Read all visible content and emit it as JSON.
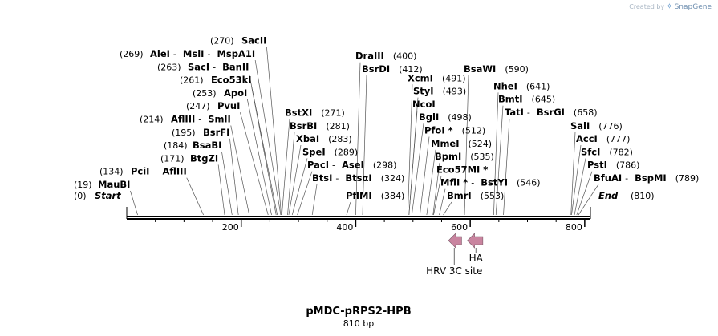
{
  "brand": {
    "created_by": "Created by",
    "app_name": "SnapGene",
    "logo_icon": "snapgene-logo-icon"
  },
  "map": {
    "title": "pMDC-pRPS2-HPB",
    "length_label": "810 bp",
    "length_bp": 810,
    "start_label": "Start",
    "start_position": "(0)",
    "end_label": "End",
    "end_position": "(810)",
    "ticks": [
      200,
      400,
      600,
      800
    ],
    "colors": {
      "backbone": "#000000",
      "feature": "#c9849f",
      "label_line": "#555555"
    },
    "features": [
      {
        "name": "HRV 3C site",
        "start": 562,
        "end": 585,
        "direction": "reverse"
      },
      {
        "name": "HA",
        "start": 595,
        "end": 622,
        "direction": "reverse"
      }
    ],
    "sites": [
      {
        "group": "left",
        "row": 0,
        "enzymes": [
          "MauBI"
        ],
        "position": "(19)",
        "cut": 19
      },
      {
        "group": "left",
        "row": 1,
        "enzymes": [
          "PciI",
          "AflIII"
        ],
        "position": "(134)",
        "cut": 134
      },
      {
        "group": "left",
        "row": 2,
        "enzymes": [
          "BtgZI"
        ],
        "position": "(171)",
        "cut": 171
      },
      {
        "group": "left",
        "row": 3,
        "enzymes": [
          "BsaBI"
        ],
        "position": "(184)",
        "cut": 184
      },
      {
        "group": "left",
        "row": 4,
        "enzymes": [
          "BsrFI"
        ],
        "position": "(195)",
        "cut": 195
      },
      {
        "group": "left",
        "row": 5,
        "enzymes": [
          "AflIII",
          "SmlI"
        ],
        "position": "(214)",
        "cut": 214
      },
      {
        "group": "left",
        "row": 6,
        "enzymes": [
          "PvuI"
        ],
        "position": "(247)",
        "cut": 247
      },
      {
        "group": "left",
        "row": 7,
        "enzymes": [
          "ApoI"
        ],
        "position": "(253)",
        "cut": 253
      },
      {
        "group": "left",
        "row": 8,
        "enzymes": [
          "Eco53kI"
        ],
        "position": "(261)",
        "cut": 261
      },
      {
        "group": "left",
        "row": 9,
        "enzymes": [
          "SacI",
          "BanII"
        ],
        "position": "(263)",
        "cut": 263
      },
      {
        "group": "left",
        "row": 10,
        "enzymes": [
          "AleI",
          "MslI",
          "MspA1I"
        ],
        "position": "(269)",
        "cut": 269
      },
      {
        "group": "left",
        "row": 11,
        "enzymes": [
          "SacII"
        ],
        "position": "(270)",
        "cut": 270
      },
      {
        "group": "mid",
        "row": 0,
        "enzymes": [
          "BtsI",
          "BtsαI"
        ],
        "position": "(324)",
        "cut": 324
      },
      {
        "group": "mid",
        "row": 1,
        "enzymes": [
          "PacI",
          "AseI"
        ],
        "position": "(298)",
        "cut": 298
      },
      {
        "group": "mid",
        "row": 2,
        "enzymes": [
          "SpeI"
        ],
        "position": "(289)",
        "cut": 289
      },
      {
        "group": "mid",
        "row": 3,
        "enzymes": [
          "XbaI"
        ],
        "position": "(283)",
        "cut": 283
      },
      {
        "group": "mid",
        "row": 4,
        "enzymes": [
          "BsrBI"
        ],
        "position": "(281)",
        "cut": 281
      },
      {
        "group": "mid",
        "row": 5,
        "enzymes": [
          "BstXI"
        ],
        "position": "(271)",
        "cut": 271
      },
      {
        "group": "pflmi",
        "row": 0,
        "enzymes": [
          "PflMI"
        ],
        "position": "(384)",
        "cut": 384
      },
      {
        "group": "dra",
        "row": 0,
        "enzymes": [
          "BsrDI"
        ],
        "position": "(412)",
        "cut": 412
      },
      {
        "group": "dra",
        "row": 1,
        "enzymes": [
          "DraIII"
        ],
        "position": "(400)",
        "cut": 400
      },
      {
        "group": "c",
        "row": 0,
        "enzymes": [
          "BmrI"
        ],
        "position": "(553)",
        "cut": 553
      },
      {
        "group": "c",
        "row": 1,
        "enzymes": [
          "MflI *",
          "BstYI"
        ],
        "position": "(546)",
        "cut": 546
      },
      {
        "group": "c",
        "row": 2,
        "enzymes": [
          "Eco57MI *"
        ],
        "position": "",
        "cut": 536
      },
      {
        "group": "c",
        "row": 3,
        "enzymes": [
          "BpmI"
        ],
        "position": "(535)",
        "cut": 535
      },
      {
        "group": "c",
        "row": 4,
        "enzymes": [
          "MmeI"
        ],
        "position": "(524)",
        "cut": 524
      },
      {
        "group": "c",
        "row": 5,
        "enzymes": [
          "PfoI *"
        ],
        "position": "(512)",
        "cut": 512
      },
      {
        "group": "c",
        "row": 6,
        "enzymes": [
          "BglI"
        ],
        "position": "(498)",
        "cut": 498
      },
      {
        "group": "c",
        "row": 7,
        "enzymes": [
          "NcoI"
        ],
        "position": "",
        "cut": 493
      },
      {
        "group": "c",
        "row": 8,
        "enzymes": [
          "StyI"
        ],
        "position": "(493)",
        "cut": 493
      },
      {
        "group": "c",
        "row": 9,
        "enzymes": [
          "XcmI"
        ],
        "position": "(491)",
        "cut": 491
      },
      {
        "group": "bsawi",
        "row": 0,
        "enzymes": [
          "BsaWI"
        ],
        "position": "(590)",
        "cut": 590
      },
      {
        "group": "nhe",
        "row": 0,
        "enzymes": [
          "TatI",
          "BsrGI"
        ],
        "position": "(658)",
        "cut": 658
      },
      {
        "group": "nhe",
        "row": 1,
        "enzymes": [
          "BmtI"
        ],
        "position": "(645)",
        "cut": 645
      },
      {
        "group": "nhe",
        "row": 2,
        "enzymes": [
          "NheI"
        ],
        "position": "(641)",
        "cut": 641
      },
      {
        "group": "right",
        "row": 0,
        "enzymes": [
          "BfuAI",
          "BspMI"
        ],
        "position": "(789)",
        "cut": 789
      },
      {
        "group": "right",
        "row": 1,
        "enzymes": [
          "PstI"
        ],
        "position": "(786)",
        "cut": 786
      },
      {
        "group": "right",
        "row": 2,
        "enzymes": [
          "SfcI"
        ],
        "position": "(782)",
        "cut": 782
      },
      {
        "group": "right",
        "row": 3,
        "enzymes": [
          "AccI"
        ],
        "position": "(777)",
        "cut": 777
      },
      {
        "group": "right",
        "row": 4,
        "enzymes": [
          "SalI"
        ],
        "position": "(776)",
        "cut": 776
      }
    ]
  }
}
